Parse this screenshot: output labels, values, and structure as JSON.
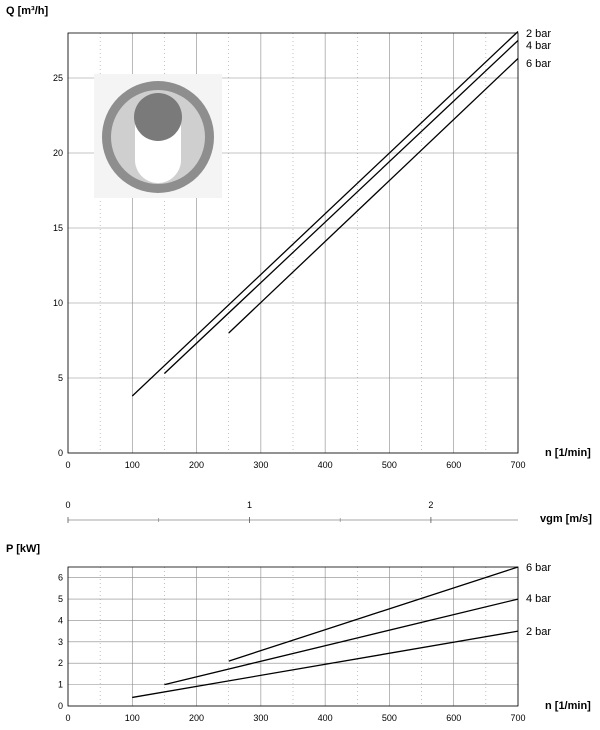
{
  "chart_data": [
    {
      "type": "line",
      "ylabel": "Q [m³/h]",
      "xlabel": "n [1/min]",
      "xlim": [
        0,
        700
      ],
      "ylim": [
        0,
        28
      ],
      "x_ticks": [
        0,
        100,
        200,
        300,
        400,
        500,
        600,
        700
      ],
      "y_ticks": [
        0,
        5,
        10,
        15,
        20,
        25
      ],
      "grid": true,
      "series": [
        {
          "name": "2 bar",
          "x": [
            100,
            700
          ],
          "y": [
            3.8,
            28.1
          ]
        },
        {
          "name": "4 bar",
          "x": [
            150,
            700
          ],
          "y": [
            5.3,
            27.5
          ]
        },
        {
          "name": "6 bar",
          "x": [
            250,
            700
          ],
          "y": [
            8.0,
            26.3
          ]
        }
      ],
      "inset_icon": "pump-cross-section-icon"
    },
    {
      "type": "axis",
      "xlabel": "vgm [m/s]",
      "ticks": [
        0,
        1,
        2
      ],
      "xlim": [
        0,
        2.48
      ]
    },
    {
      "type": "line",
      "ylabel": "P [kW]",
      "xlabel": "n [1/min]",
      "xlim": [
        0,
        700
      ],
      "ylim": [
        0,
        6.5
      ],
      "x_ticks": [
        0,
        100,
        200,
        300,
        400,
        500,
        600,
        700
      ],
      "y_ticks": [
        0,
        1,
        2,
        3,
        4,
        5,
        6
      ],
      "grid": true,
      "series": [
        {
          "name": "6 bar",
          "x": [
            250,
            700
          ],
          "y": [
            2.1,
            6.5
          ]
        },
        {
          "name": "4 bar",
          "x": [
            150,
            700
          ],
          "y": [
            1.0,
            5.0
          ]
        },
        {
          "name": "2 bar",
          "x": [
            100,
            700
          ],
          "y": [
            0.4,
            3.5
          ]
        }
      ]
    }
  ]
}
